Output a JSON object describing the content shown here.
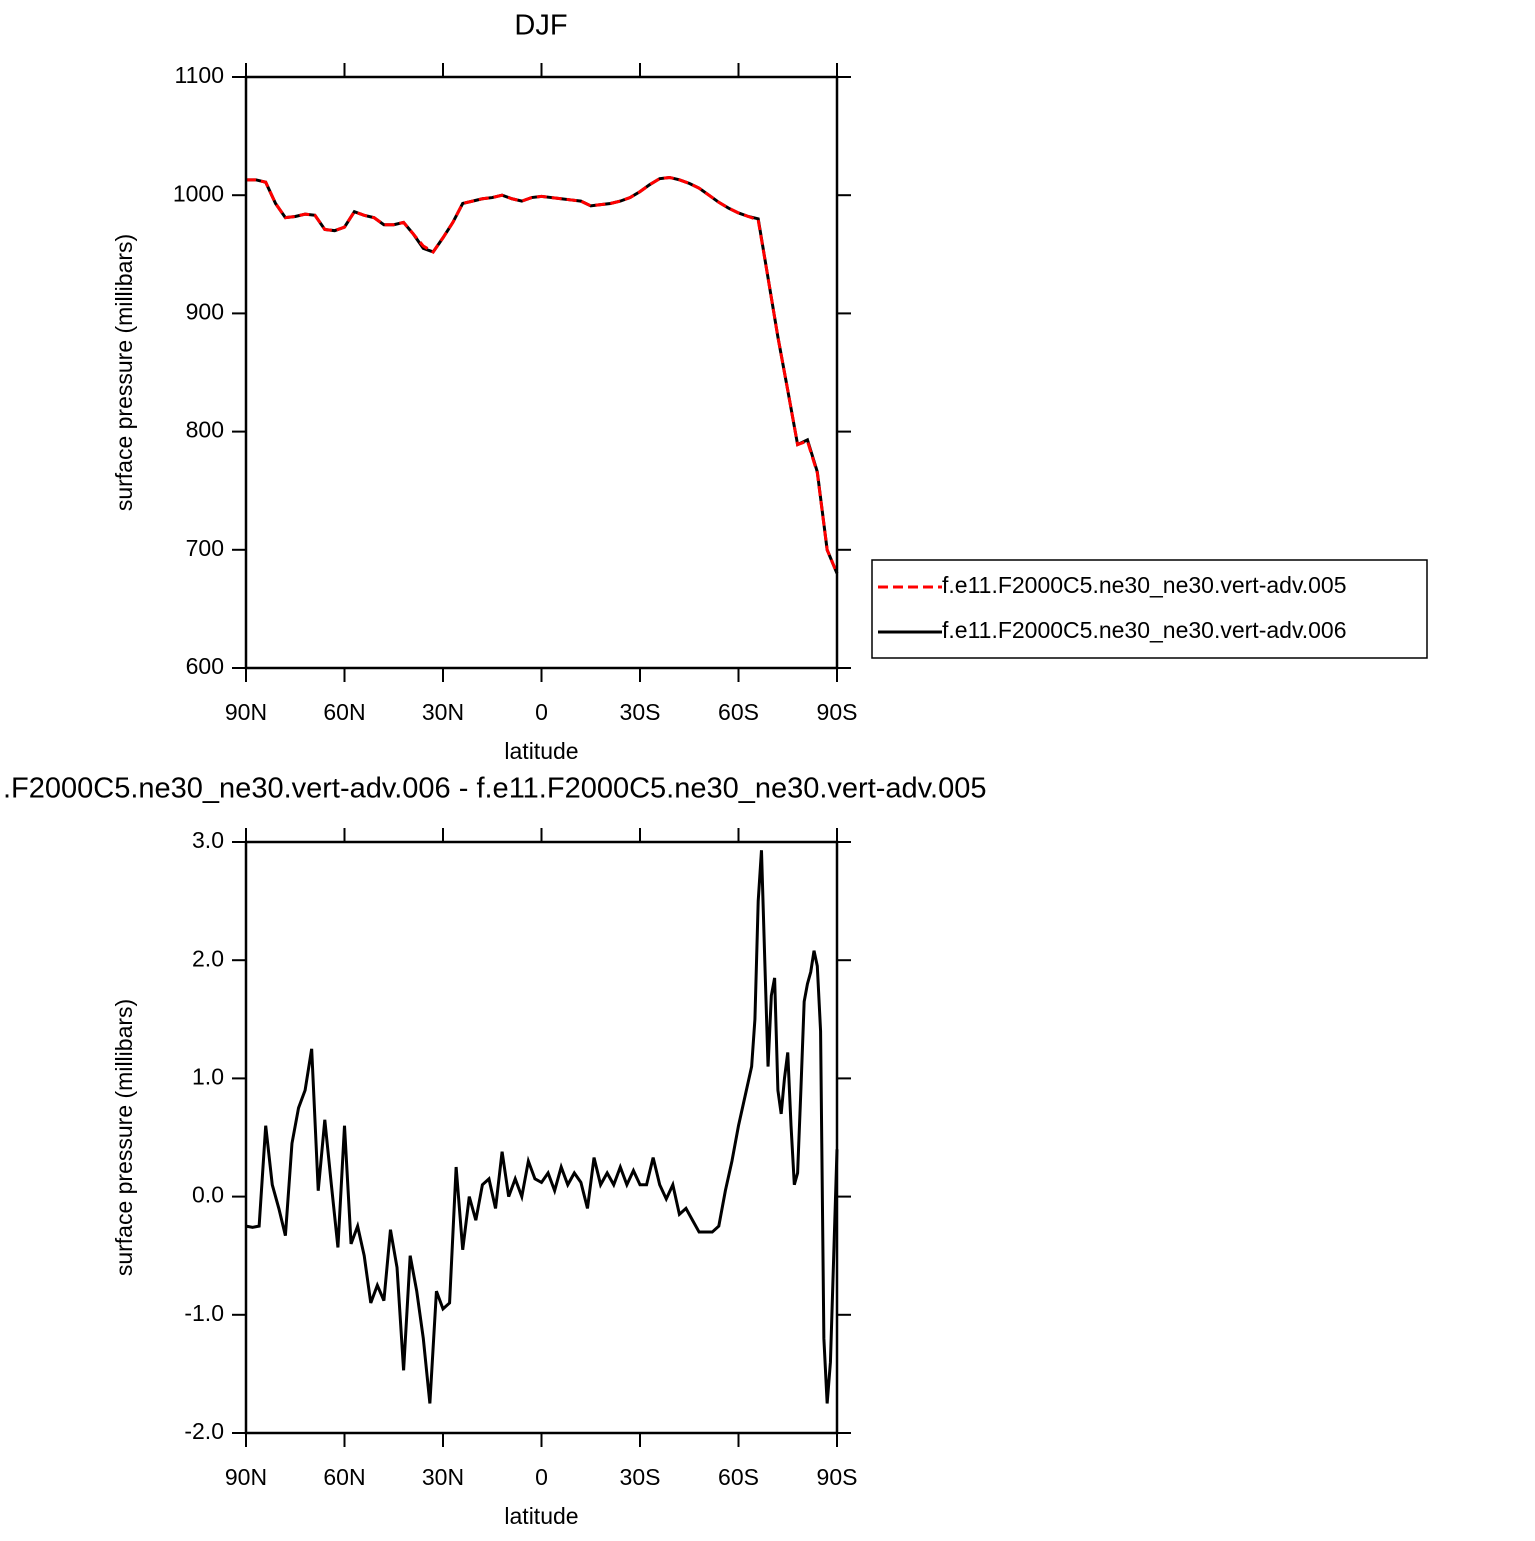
{
  "chart_data": [
    {
      "type": "line",
      "title": "DJF",
      "xlabel": "latitude",
      "ylabel": "surface pressure (millibars)",
      "x": [
        90,
        87,
        84,
        81,
        78,
        75,
        72,
        69,
        66,
        63,
        60,
        57,
        54,
        51,
        48,
        45,
        42,
        39,
        36,
        33,
        30,
        27,
        24,
        21,
        18,
        15,
        12,
        9,
        6,
        3,
        0,
        -3,
        -6,
        -9,
        -12,
        -15,
        -18,
        -21,
        -24,
        -27,
        -30,
        -33,
        -36,
        -39,
        -42,
        -45,
        -48,
        -51,
        -54,
        -57,
        -60,
        -63,
        -66,
        -69,
        -72,
        -75,
        -78,
        -81,
        -84,
        -87,
        -90
      ],
      "series": [
        {
          "name": "f.e11.F2000C5.ne30_ne30.vert-adv.005",
          "color": "#ff0000",
          "linestyle": "dashed",
          "values": [
            1013,
            1013,
            1011,
            993,
            981,
            982,
            984,
            983,
            971,
            970,
            973,
            986,
            983,
            981,
            975,
            975,
            977,
            967,
            957,
            952,
            964,
            977,
            993,
            995,
            997,
            998,
            1000,
            997,
            995,
            998,
            999,
            998,
            997,
            996,
            995,
            991,
            992,
            993,
            995,
            998,
            1003,
            1009,
            1014,
            1015,
            1013,
            1010,
            1006,
            1000,
            994,
            989,
            985,
            982,
            979,
            930,
            880,
            835,
            789,
            792,
            765,
            700,
            680
          ]
        },
        {
          "name": "f.e11.F2000C5.ne30_ne30.vert-adv.006",
          "color": "#000000",
          "linestyle": "solid",
          "values": [
            1013,
            1013,
            1011,
            993,
            981,
            982,
            984,
            983,
            971,
            970,
            973,
            986,
            983,
            981,
            975,
            975,
            977,
            967,
            955,
            952,
            964,
            977,
            993,
            995,
            997,
            998,
            1000,
            997,
            995,
            998,
            999,
            998,
            997,
            996,
            995,
            991,
            992,
            993,
            995,
            998,
            1003,
            1009,
            1014,
            1015,
            1013,
            1010,
            1006,
            1000,
            994,
            989,
            985,
            982,
            980,
            930,
            880,
            835,
            789,
            793,
            766,
            700,
            680
          ]
        }
      ],
      "xlim": [
        90,
        -90
      ],
      "xticks": [
        {
          "value": 90,
          "label": "90N"
        },
        {
          "value": 60,
          "label": "60N"
        },
        {
          "value": 30,
          "label": "30N"
        },
        0,
        {
          "value": -30,
          "label": "30S"
        },
        {
          "value": -60,
          "label": "60S"
        },
        {
          "value": -90,
          "label": "90S"
        }
      ],
      "ylim": [
        600,
        1100
      ],
      "yticks": [
        600,
        700,
        800,
        900,
        1000,
        1100
      ],
      "legend": "right"
    },
    {
      "type": "line",
      "title": ".F2000C5.ne30_ne30.vert-adv.006 - f.e11.F2000C5.ne30_ne30.vert-adv.005",
      "xlabel": "latitude",
      "ylabel": "surface pressure (millibars)",
      "x": [
        90,
        88,
        86,
        84,
        82,
        80,
        78,
        76,
        74,
        72,
        70,
        68,
        66,
        64,
        62,
        60,
        58,
        56,
        54,
        52,
        50,
        48,
        46,
        44,
        42,
        40,
        38,
        36,
        34,
        32,
        30,
        28,
        26,
        24,
        22,
        20,
        18,
        16,
        14,
        12,
        10,
        8,
        6,
        4,
        2,
        0,
        -2,
        -4,
        -6,
        -8,
        -10,
        -12,
        -14,
        -16,
        -18,
        -20,
        -22,
        -24,
        -26,
        -28,
        -30,
        -32,
        -34,
        -36,
        -38,
        -40,
        -42,
        -44,
        -46,
        -48,
        -50,
        -52,
        -54,
        -56,
        -58,
        -60,
        -62,
        -64,
        -65,
        -66,
        -67,
        -68,
        -69,
        -70,
        -71,
        -72,
        -73,
        -74,
        -75,
        -76,
        -77,
        -78,
        -79,
        -80,
        -81,
        -82,
        -83,
        -84,
        -85,
        -86,
        -87,
        -88,
        -89,
        -90
      ],
      "series": [
        {
          "color": "#000000",
          "linestyle": "solid",
          "values": [
            -0.25,
            -0.26,
            -0.25,
            0.6,
            0.1,
            -0.1,
            -0.33,
            0.45,
            0.75,
            0.9,
            1.25,
            0.05,
            0.65,
            0.1,
            -0.43,
            0.6,
            -0.4,
            -0.25,
            -0.5,
            -0.9,
            -0.75,
            -0.88,
            -0.28,
            -0.6,
            -1.47,
            -0.5,
            -0.8,
            -1.2,
            -1.75,
            -0.8,
            -0.95,
            -0.9,
            0.25,
            -0.45,
            0.0,
            -0.2,
            0.1,
            0.15,
            -0.1,
            0.38,
            0.0,
            0.15,
            0.0,
            0.3,
            0.15,
            0.12,
            0.2,
            0.05,
            0.25,
            0.1,
            0.2,
            0.12,
            -0.1,
            0.33,
            0.1,
            0.2,
            0.1,
            0.25,
            0.1,
            0.22,
            0.1,
            0.1,
            0.33,
            0.1,
            -0.02,
            0.1,
            -0.15,
            -0.1,
            -0.2,
            -0.3,
            -0.3,
            -0.3,
            -0.25,
            0.05,
            0.3,
            0.6,
            0.85,
            1.1,
            1.5,
            2.5,
            2.93,
            2.0,
            1.1,
            1.7,
            1.85,
            0.9,
            0.7,
            1.0,
            1.22,
            0.6,
            0.1,
            0.2,
            0.9,
            1.65,
            1.8,
            1.9,
            2.08,
            1.95,
            1.4,
            -1.2,
            -1.75,
            -1.4,
            -0.5,
            0.4
          ]
        }
      ],
      "xlim": [
        90,
        -90
      ],
      "xticks": [
        {
          "value": 90,
          "label": "90N"
        },
        {
          "value": 60,
          "label": "60N"
        },
        {
          "value": 30,
          "label": "30N"
        },
        0,
        {
          "value": -30,
          "label": "30S"
        },
        {
          "value": -60,
          "label": "60S"
        },
        {
          "value": -90,
          "label": "90S"
        }
      ],
      "ylim": [
        -2,
        3
      ],
      "yticks": [
        {
          "value": -2,
          "label": "-2.0"
        },
        {
          "value": -1,
          "label": "-1.0"
        },
        {
          "value": 0,
          "label": "0.0"
        },
        {
          "value": 1,
          "label": "1.0"
        },
        {
          "value": 2,
          "label": "2.0"
        },
        {
          "value": 3,
          "label": "3.0"
        }
      ]
    }
  ]
}
